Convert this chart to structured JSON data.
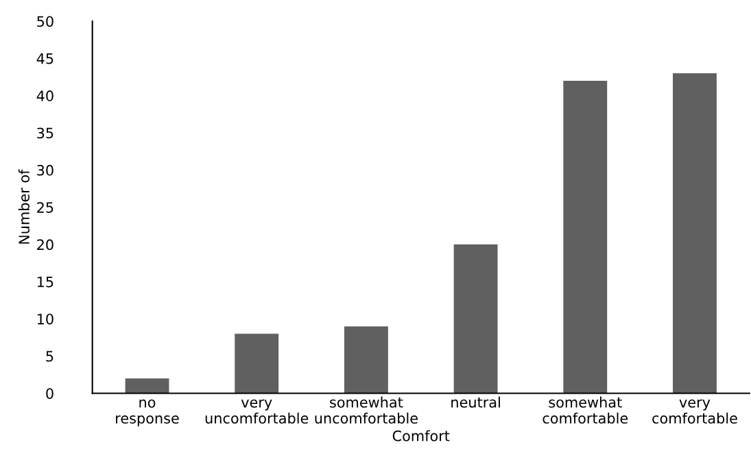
{
  "chart_data": {
    "type": "bar",
    "xlabel": "Comfort",
    "ylabel": "Number of",
    "categories": [
      "no response",
      "very uncomfortable",
      "somewhat uncomfortable",
      "neutral",
      "somewhat comfortable",
      "very comfortable"
    ],
    "values": [
      2,
      8,
      9,
      20,
      42,
      43
    ],
    "color": "#606060",
    "ylim": [
      0,
      50
    ],
    "yticks": [
      0,
      5,
      10,
      15,
      20,
      25,
      30,
      35,
      40,
      45,
      50
    ],
    "grid": false
  }
}
